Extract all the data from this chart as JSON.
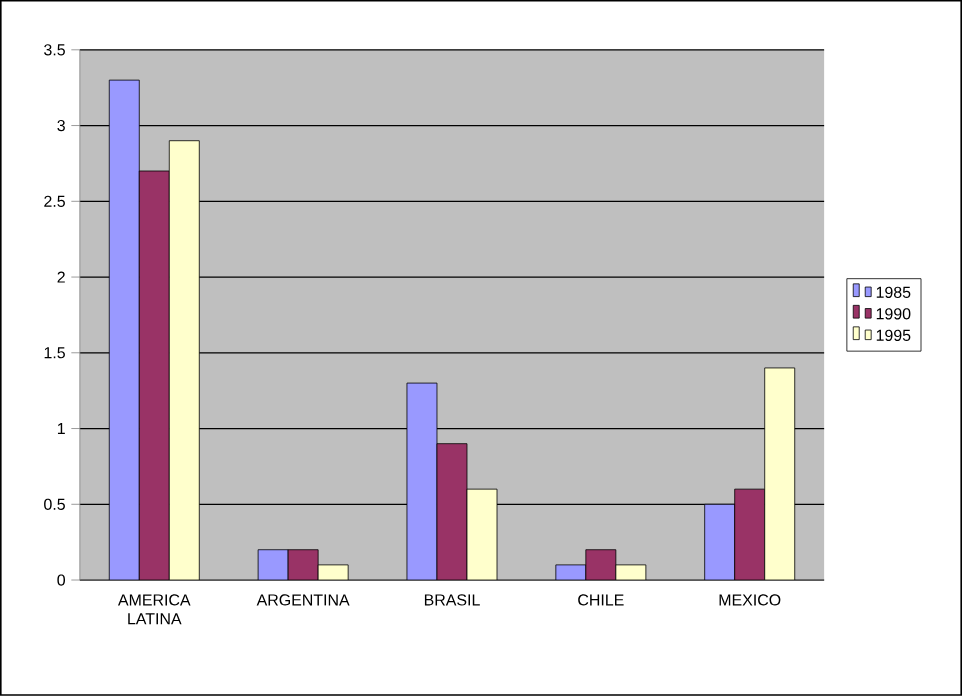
{
  "chart_data": {
    "type": "bar",
    "categories": [
      "AMERICA LATINA",
      "ARGENTINA",
      "BRASIL",
      "CHILE",
      "MEXICO"
    ],
    "series": [
      {
        "name": "1985",
        "color": "#9999ff",
        "values": [
          3.3,
          0.2,
          1.3,
          0.1,
          0.5
        ]
      },
      {
        "name": "1990",
        "color": "#993366",
        "values": [
          2.7,
          0.2,
          0.9,
          0.2,
          0.6
        ]
      },
      {
        "name": "1995",
        "color": "#ffffcc",
        "values": [
          2.9,
          0.1,
          0.6,
          0.1,
          1.4
        ]
      }
    ],
    "ylim": [
      0,
      3.5
    ],
    "yticks": [
      0,
      0.5,
      1,
      1.5,
      2,
      2.5,
      3,
      3.5
    ],
    "grid": "y",
    "legend": "right"
  }
}
